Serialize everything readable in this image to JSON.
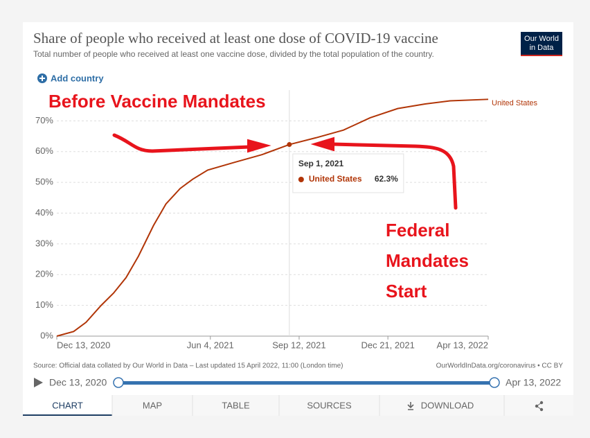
{
  "header": {
    "title": "Share of people who received at least one dose of COVID-19 vaccine",
    "subtitle": "Total number of people who received at least one vaccine dose, divided by the total population of the country.",
    "logo": [
      "Our World",
      "in Data"
    ],
    "add_country": "Add country"
  },
  "chart_data": {
    "type": "line",
    "x": [
      "2020-12-13",
      "2021-01-01",
      "2021-01-15",
      "2021-02-01",
      "2021-02-15",
      "2021-03-01",
      "2021-03-15",
      "2021-04-01",
      "2021-04-15",
      "2021-05-01",
      "2021-05-15",
      "2021-06-01",
      "2021-07-01",
      "2021-08-01",
      "2021-09-01",
      "2021-10-01",
      "2021-11-01",
      "2021-12-01",
      "2022-01-01",
      "2022-02-01",
      "2022-03-01",
      "2022-04-13"
    ],
    "series": [
      {
        "name": "United States",
        "color": "#b13507",
        "values": [
          0,
          1.5,
          4.5,
          10,
          14,
          19,
          26,
          36,
          43,
          48,
          51,
          54,
          56.5,
          59,
          62.3,
          64.5,
          67,
          71,
          74,
          75.5,
          76.5,
          77
        ]
      }
    ],
    "xlim": [
      "2020-12-13",
      "2022-04-13"
    ],
    "xticks": [
      {
        "value": "2020-12-13",
        "label": "Dec 13, 2020"
      },
      {
        "value": "2021-06-04",
        "label": "Jun 4, 2021"
      },
      {
        "value": "2021-09-12",
        "label": "Sep 12, 2021"
      },
      {
        "value": "2021-12-21",
        "label": "Dec 21, 2021"
      },
      {
        "value": "2022-04-13",
        "label": "Apr 13, 2022"
      }
    ],
    "ylim": [
      0,
      80
    ],
    "yticks": [
      {
        "value": 0,
        "label": "0%"
      },
      {
        "value": 10,
        "label": "10%"
      },
      {
        "value": 20,
        "label": "20%"
      },
      {
        "value": 30,
        "label": "30%"
      },
      {
        "value": 40,
        "label": "40%"
      },
      {
        "value": 50,
        "label": "50%"
      },
      {
        "value": 60,
        "label": "60%"
      },
      {
        "value": 70,
        "label": "70%"
      }
    ],
    "grid": true,
    "tooltip": {
      "x": "2021-09-01",
      "date": "Sep 1, 2021",
      "value": 62.3,
      "value_label": "62.3%"
    },
    "annotations": {
      "before": "Before Vaccine Mandates",
      "after": [
        "Federal",
        "Mandates",
        "Start"
      ]
    }
  },
  "footer": {
    "source": "Source: Official data collated by Our World in Data – Last updated 15 April 2022, 11:00 (London time)",
    "url": "OurWorldInData.org/coronavirus • CC BY",
    "timeline": {
      "start": "Dec 13, 2020",
      "end": "Apr 13, 2022"
    },
    "tabs": [
      "CHART",
      "MAP",
      "TABLE",
      "SOURCES",
      "DOWNLOAD"
    ]
  }
}
